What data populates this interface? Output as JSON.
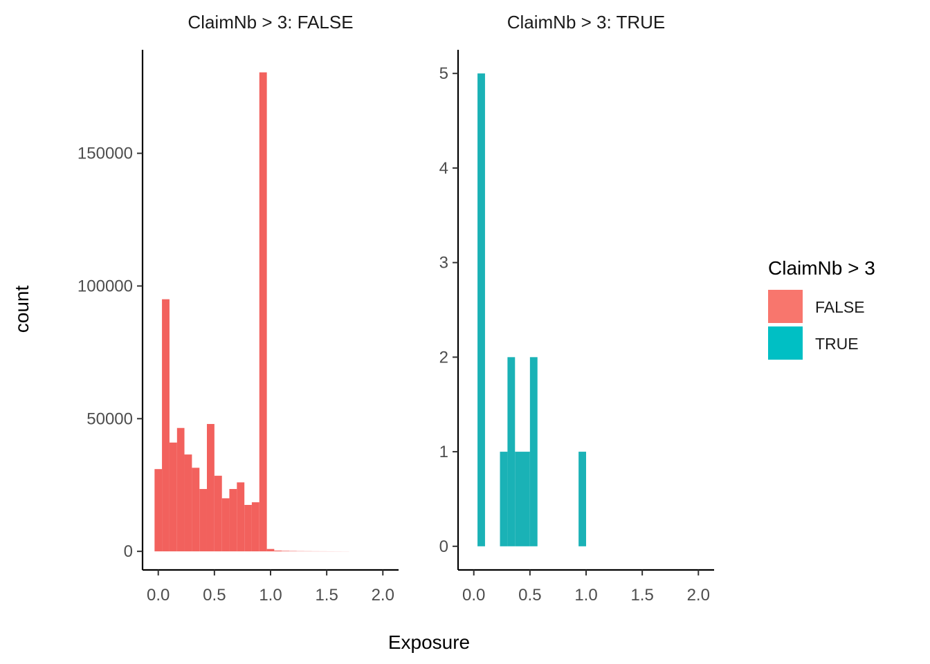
{
  "chart_data": {
    "type": "bar",
    "subtype": "faceted-histogram",
    "xlabel": "Exposure",
    "ylabel": "count",
    "legend": {
      "title": "ClaimNb > 3",
      "placement": "right",
      "entries": [
        {
          "label": "FALSE",
          "color": "#F8766D"
        },
        {
          "label": "TRUE",
          "color": "#00BFC4"
        }
      ]
    },
    "grid": false,
    "facets": [
      {
        "title": "ClaimNb > 3: FALSE",
        "series_name": "FALSE",
        "color": "#F2615D",
        "xlim": [
          -0.14,
          2.14
        ],
        "ylim": [
          -7000,
          189000
        ],
        "x_ticks": [
          0.0,
          0.5,
          1.0,
          1.5,
          2.0
        ],
        "x_tick_labels": [
          "0.0",
          "0.5",
          "1.0",
          "1.5",
          "2.0"
        ],
        "y_ticks": [
          0,
          50000,
          100000,
          150000
        ],
        "y_tick_labels": [
          "0",
          "50000",
          "100000",
          "150000"
        ],
        "bin_width": 0.0667,
        "bins": [
          {
            "x0": -0.033,
            "x1": 0.033,
            "count": 31000
          },
          {
            "x0": 0.033,
            "x1": 0.1,
            "count": 95000
          },
          {
            "x0": 0.1,
            "x1": 0.167,
            "count": 41000
          },
          {
            "x0": 0.167,
            "x1": 0.233,
            "count": 46500
          },
          {
            "x0": 0.233,
            "x1": 0.3,
            "count": 36500
          },
          {
            "x0": 0.3,
            "x1": 0.367,
            "count": 31500
          },
          {
            "x0": 0.367,
            "x1": 0.433,
            "count": 23500
          },
          {
            "x0": 0.433,
            "x1": 0.5,
            "count": 48000
          },
          {
            "x0": 0.5,
            "x1": 0.567,
            "count": 28500
          },
          {
            "x0": 0.567,
            "x1": 0.633,
            "count": 20000
          },
          {
            "x0": 0.633,
            "x1": 0.7,
            "count": 23500
          },
          {
            "x0": 0.7,
            "x1": 0.767,
            "count": 26000
          },
          {
            "x0": 0.767,
            "x1": 0.833,
            "count": 17500
          },
          {
            "x0": 0.833,
            "x1": 0.9,
            "count": 18500
          },
          {
            "x0": 0.9,
            "x1": 0.967,
            "count": 180500
          },
          {
            "x0": 0.967,
            "x1": 1.033,
            "count": 900
          },
          {
            "x0": 1.033,
            "x1": 1.1,
            "count": 300
          },
          {
            "x0": 1.1,
            "x1": 1.167,
            "count": 200
          },
          {
            "x0": 1.167,
            "x1": 1.233,
            "count": 150
          },
          {
            "x0": 1.233,
            "x1": 1.3,
            "count": 100
          },
          {
            "x0": 1.3,
            "x1": 1.367,
            "count": 80
          },
          {
            "x0": 1.367,
            "x1": 1.433,
            "count": 60
          },
          {
            "x0": 1.433,
            "x1": 1.5,
            "count": 50
          },
          {
            "x0": 1.5,
            "x1": 1.567,
            "count": 40
          },
          {
            "x0": 1.567,
            "x1": 1.633,
            "count": 30
          },
          {
            "x0": 1.633,
            "x1": 1.7,
            "count": 20
          }
        ]
      },
      {
        "title": "ClaimNb > 3: TRUE",
        "series_name": "TRUE",
        "color": "#1AB2B6",
        "xlim": [
          -0.14,
          2.14
        ],
        "ylim": [
          -0.25,
          5.25
        ],
        "x_ticks": [
          0.0,
          0.5,
          1.0,
          1.5,
          2.0
        ],
        "x_tick_labels": [
          "0.0",
          "0.5",
          "1.0",
          "1.5",
          "2.0"
        ],
        "y_ticks": [
          0,
          1,
          2,
          3,
          4,
          5
        ],
        "y_tick_labels": [
          "0",
          "1",
          "2",
          "3",
          "4",
          "5"
        ],
        "bin_width": 0.0667,
        "bins": [
          {
            "x0": 0.033,
            "x1": 0.1,
            "count": 5
          },
          {
            "x0": 0.233,
            "x1": 0.3,
            "count": 1
          },
          {
            "x0": 0.3,
            "x1": 0.367,
            "count": 2
          },
          {
            "x0": 0.367,
            "x1": 0.433,
            "count": 1
          },
          {
            "x0": 0.433,
            "x1": 0.5,
            "count": 1
          },
          {
            "x0": 0.5,
            "x1": 0.567,
            "count": 2
          },
          {
            "x0": 0.933,
            "x1": 1.0,
            "count": 1
          }
        ]
      }
    ]
  }
}
